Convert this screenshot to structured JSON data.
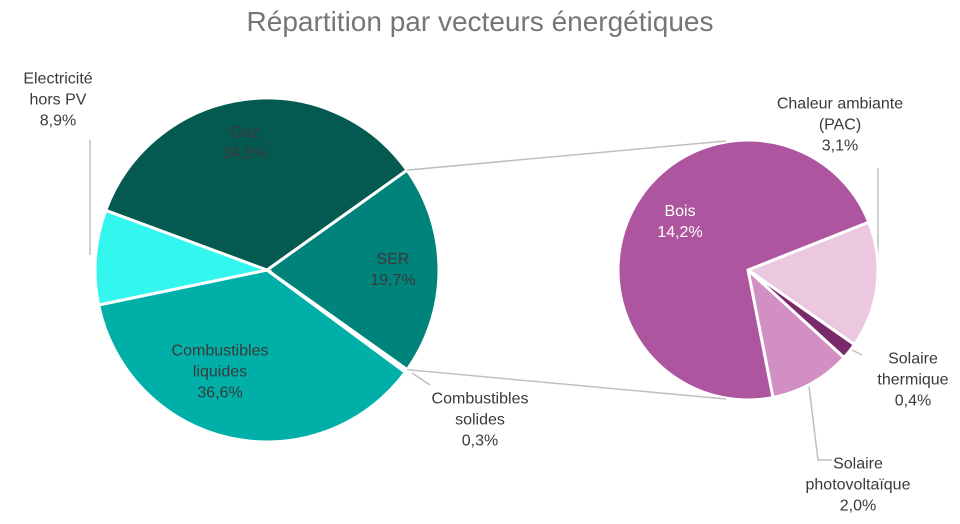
{
  "chart_data": {
    "type": "pie-of-pie",
    "title": "Répartition par vecteurs énergétiques",
    "categories": [
      "SER",
      "Combustibles solides",
      "Combustibles liquides",
      "Electricité hors PV",
      "Gaz"
    ],
    "values": [
      19.7,
      0.3,
      36.6,
      8.9,
      34.5
    ],
    "value_labels": [
      "19,7%",
      "0,3%",
      "36,6%",
      "8,9%",
      "34,5%"
    ],
    "colors": [
      "#00837a",
      "#7fd6cf",
      "#00b0a8",
      "#33f6ee",
      "#045a50"
    ],
    "sub": {
      "categories": [
        "Chaleur ambiante (PAC)",
        "Solaire thermique",
        "Solaire photovoltaïque",
        "Bois"
      ],
      "values": [
        3.1,
        0.4,
        2.0,
        14.2
      ],
      "value_labels": [
        "3,1%",
        "0,4%",
        "2,0%",
        "14,2%"
      ],
      "colors": [
        "#ecc7e0",
        "#7a2a6a",
        "#d18fc4",
        "#ae559f"
      ]
    }
  }
}
